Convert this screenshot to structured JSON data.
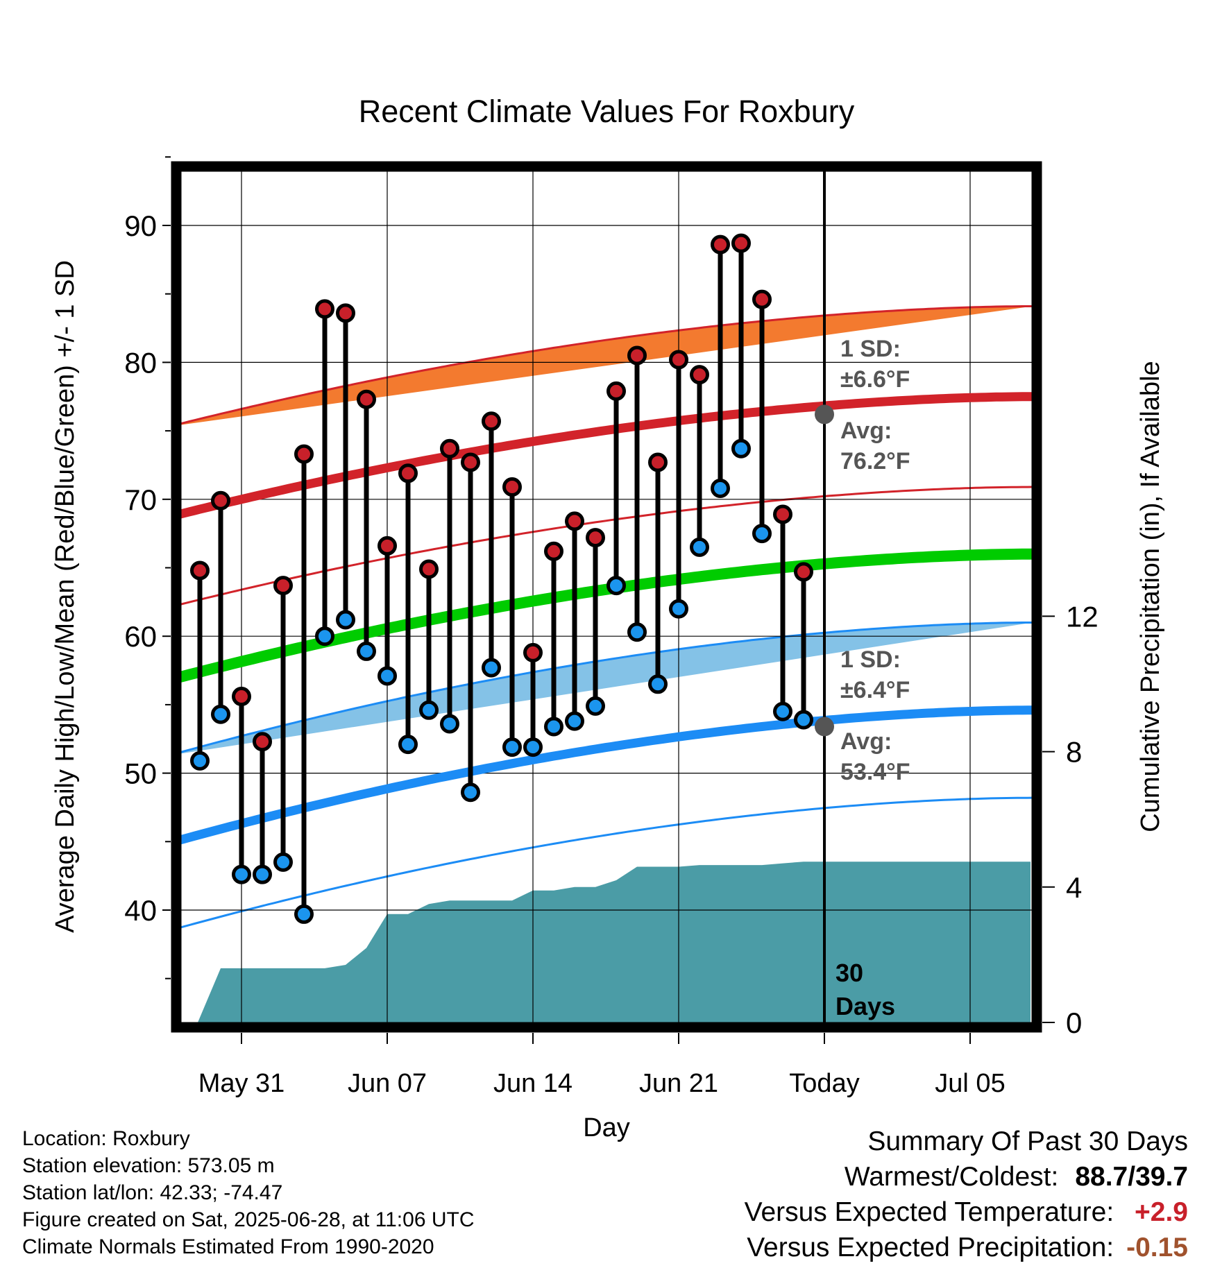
{
  "chart_data": {
    "type": "line",
    "title": "Recent Climate Values For Roxbury",
    "xlabel": "Day",
    "ylabel": "Average Daily High/Low/Mean (Red/Blue/Green) +/- 1 SD",
    "y2label": "Cumulative Precipitation (in), If Available",
    "ylim": [
      32,
      95
    ],
    "y2lim": [
      0,
      30
    ],
    "x_ticks": [
      {
        "day": 0,
        "label": "May 31"
      },
      {
        "day": 7,
        "label": "Jun 07"
      },
      {
        "day": 14,
        "label": "Jun 14"
      },
      {
        "day": 21,
        "label": "Jun 21"
      },
      {
        "day": 28,
        "label": "Today"
      },
      {
        "day": 35,
        "label": "Jul 05"
      }
    ],
    "y_ticks": [
      40,
      50,
      60,
      70,
      80,
      90
    ],
    "y2_ticks": [
      0,
      4,
      8,
      12
    ],
    "xlim": [
      -3,
      38
    ],
    "today_day": 28,
    "today_label": [
      "30",
      "Days"
    ],
    "observed": {
      "days": [
        -2,
        -1,
        0,
        1,
        2,
        3,
        4,
        5,
        6,
        7,
        8,
        9,
        10,
        11,
        12,
        13,
        14,
        15,
        16,
        17,
        18,
        19,
        20,
        21,
        22,
        23,
        24,
        25,
        26,
        27
      ],
      "highs": [
        64.8,
        69.9,
        55.6,
        52.3,
        63.7,
        73.3,
        83.9,
        83.6,
        77.3,
        66.6,
        71.9,
        64.9,
        73.7,
        72.7,
        75.7,
        70.9,
        58.8,
        66.2,
        68.4,
        67.2,
        77.9,
        80.5,
        72.7,
        80.2,
        79.1,
        88.6,
        88.7,
        84.6,
        68.9,
        64.7
      ],
      "lows": [
        50.9,
        54.3,
        42.6,
        42.6,
        43.5,
        39.7,
        60.0,
        61.2,
        58.9,
        57.1,
        52.1,
        54.6,
        53.6,
        48.6,
        57.7,
        51.9,
        51.9,
        53.4,
        53.8,
        54.9,
        63.7,
        60.3,
        56.5,
        62.0,
        66.5,
        70.8,
        73.7,
        67.5,
        54.5,
        53.9
      ]
    },
    "normal_high": {
      "start": 68.9,
      "end": 77.5,
      "sd": 6.6,
      "sd_label": "1 SD:",
      "sd_value": "±6.6°F",
      "avg_label": "Avg:",
      "avg_value": "76.2°F",
      "today_value": 76.2
    },
    "normal_low": {
      "start": 45.1,
      "end": 54.6,
      "sd": 6.4,
      "sd_label": "1 SD:",
      "sd_value": "±6.4°F",
      "avg_label": "Avg:",
      "avg_value": "53.4°F",
      "today_value": 53.4
    },
    "normal_mean": {
      "start": 57.0,
      "end": 66.0
    },
    "precip": {
      "days": [
        -2.1,
        -1,
        0,
        1,
        2,
        3,
        4,
        5,
        6,
        7,
        8,
        9,
        10,
        11,
        12,
        13,
        14,
        15,
        16,
        17,
        18,
        19,
        20,
        21,
        22,
        23,
        24,
        25,
        26,
        27,
        28,
        37.9
      ],
      "values": [
        0,
        1.6,
        1.6,
        1.6,
        1.6,
        1.6,
        1.6,
        1.7,
        2.2,
        3.2,
        3.2,
        3.5,
        3.6,
        3.6,
        3.6,
        3.6,
        3.9,
        3.9,
        4.0,
        4.0,
        4.2,
        4.6,
        4.6,
        4.6,
        4.65,
        4.65,
        4.65,
        4.65,
        4.7,
        4.75,
        4.75,
        4.75
      ]
    },
    "colors": {
      "high_band": "#f37a2f",
      "high_line": "#d2232a",
      "high_dot": "#c8202a",
      "low_band": "#84c2e7",
      "low_line": "#1c8cf5",
      "low_dot": "#1b95ee",
      "mean_line": "#00cc00",
      "precip": "#4b9ca6",
      "today_marker": "#555555",
      "label_gray": "#555555"
    },
    "grid": true
  },
  "footer": {
    "location": "Location: Roxbury",
    "elevation": "Station elevation: 573.05 m",
    "latlon": "Station lat/lon: 42.33; -74.47",
    "created": "Figure created on Sat, 2025-06-28, at 11:06 UTC",
    "normals": "Climate Normals Estimated From 1990-2020"
  },
  "summary": {
    "title": "Summary Of Past 30 Days",
    "warm_cold_label": "Warmest/Coldest:",
    "warmest": "88.7",
    "slash": "/",
    "coldest": "39.7",
    "temp_label": "Versus Expected Temperature:",
    "temp_value": "+2.9",
    "temp_color": "#c8202a",
    "precip_label": "Versus Expected Precipitation:",
    "precip_value": "-0.15",
    "precip_color": "#a0522d"
  }
}
